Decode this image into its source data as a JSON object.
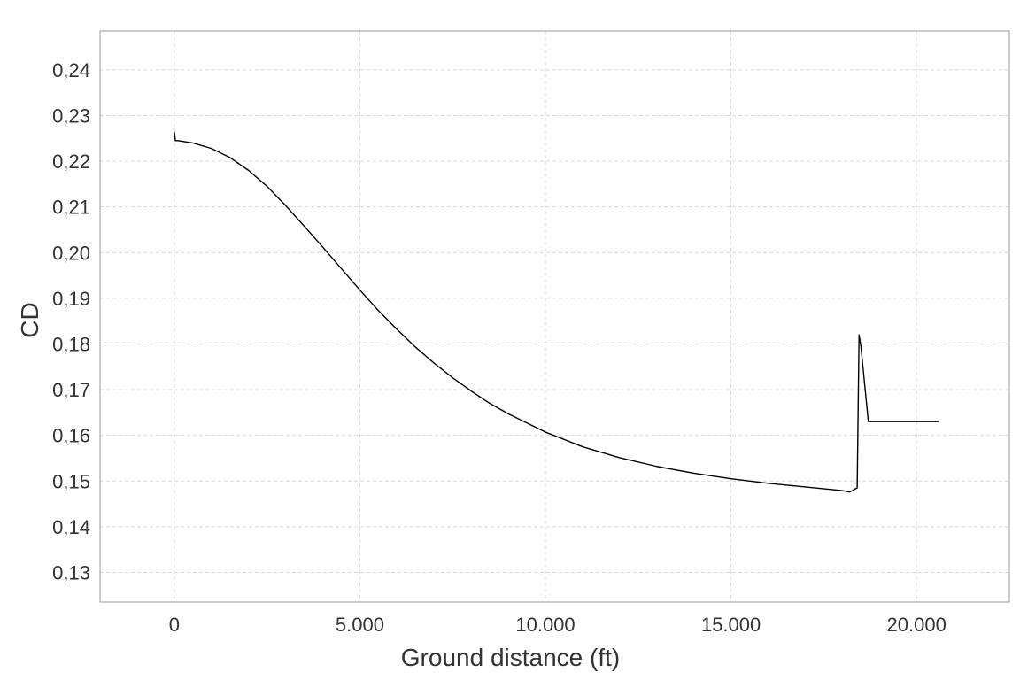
{
  "chart_data": {
    "type": "line",
    "title": "",
    "xlabel": "Ground distance (ft)",
    "ylabel": "CD",
    "xlim": [
      -2000,
      22500
    ],
    "ylim": [
      0.1235,
      0.2485
    ],
    "x_ticks": [
      {
        "value": 0,
        "label": "0"
      },
      {
        "value": 5000,
        "label": "5.000"
      },
      {
        "value": 10000,
        "label": "10.000"
      },
      {
        "value": 15000,
        "label": "15.000"
      },
      {
        "value": 20000,
        "label": "20.000"
      }
    ],
    "y_ticks": [
      {
        "value": 0.13,
        "label": "0,13"
      },
      {
        "value": 0.14,
        "label": "0,14"
      },
      {
        "value": 0.15,
        "label": "0,15"
      },
      {
        "value": 0.16,
        "label": "0,16"
      },
      {
        "value": 0.17,
        "label": "0,17"
      },
      {
        "value": 0.18,
        "label": "0,18"
      },
      {
        "value": 0.19,
        "label": "0,19"
      },
      {
        "value": 0.2,
        "label": "0,20"
      },
      {
        "value": 0.21,
        "label": "0,21"
      },
      {
        "value": 0.22,
        "label": "0,22"
      },
      {
        "value": 0.23,
        "label": "0,23"
      },
      {
        "value": 0.24,
        "label": "0,24"
      }
    ],
    "grid": true,
    "series": [
      {
        "color": "#000000",
        "x": [
          0,
          30,
          100,
          500,
          1000,
          1500,
          2000,
          2500,
          3000,
          3500,
          4000,
          4500,
          5000,
          5500,
          6000,
          6500,
          7000,
          7500,
          8000,
          8500,
          9000,
          10000,
          11000,
          12000,
          13000,
          14000,
          15000,
          16000,
          17000,
          18000,
          18200,
          18400,
          18450,
          18500,
          18700,
          19000,
          20000,
          20600
        ],
        "y": [
          0.2265,
          0.2245,
          0.2245,
          0.224,
          0.2228,
          0.2208,
          0.218,
          0.2145,
          0.2103,
          0.2058,
          0.2012,
          0.1965,
          0.1918,
          0.1873,
          0.1832,
          0.1793,
          0.1758,
          0.1726,
          0.1697,
          0.167,
          0.1647,
          0.1607,
          0.1575,
          0.1551,
          0.1532,
          0.1517,
          0.1505,
          0.1495,
          0.1487,
          0.1479,
          0.1476,
          0.1485,
          0.182,
          0.1795,
          0.163,
          0.163,
          0.163,
          0.163
        ]
      }
    ]
  }
}
